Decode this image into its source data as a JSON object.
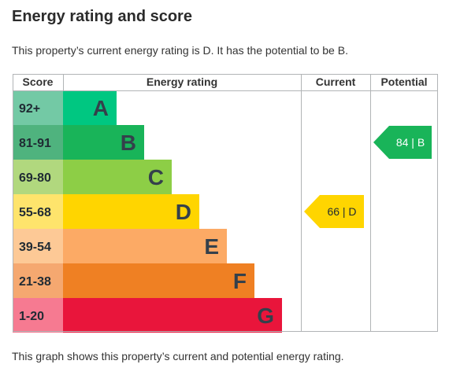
{
  "heading": "Energy rating and score",
  "intro_text": "This property’s current energy rating is D. It has the potential to be B.",
  "footer_text": "This graph shows this property’s current and potential energy rating.",
  "chart_data": {
    "type": "bar",
    "columns": [
      "Score",
      "Energy rating",
      "Current",
      "Potential"
    ],
    "bands": [
      {
        "score": "92+",
        "letter": "A",
        "score_color": "#73c9a5",
        "bar_color": "#00c781"
      },
      {
        "score": "81-91",
        "letter": "B",
        "score_color": "#4fb37e",
        "bar_color": "#19b459"
      },
      {
        "score": "69-80",
        "letter": "C",
        "score_color": "#b1d87e",
        "bar_color": "#8dce46"
      },
      {
        "score": "55-68",
        "letter": "D",
        "score_color": "#fee46c",
        "bar_color": "#ffd500"
      },
      {
        "score": "39-54",
        "letter": "E",
        "score_color": "#fdc996",
        "bar_color": "#fcaa65"
      },
      {
        "score": "21-38",
        "letter": "F",
        "score_color": "#f5a870",
        "bar_color": "#ef8023"
      },
      {
        "score": "1-20",
        "letter": "G",
        "score_color": "#f67a91",
        "bar_color": "#e9153b"
      }
    ],
    "current": {
      "value": 66,
      "letter": "D",
      "label": "66 | D",
      "color": "#ffd500"
    },
    "potential": {
      "value": 84,
      "letter": "B",
      "label": "84 | B",
      "color": "#19b459"
    }
  }
}
